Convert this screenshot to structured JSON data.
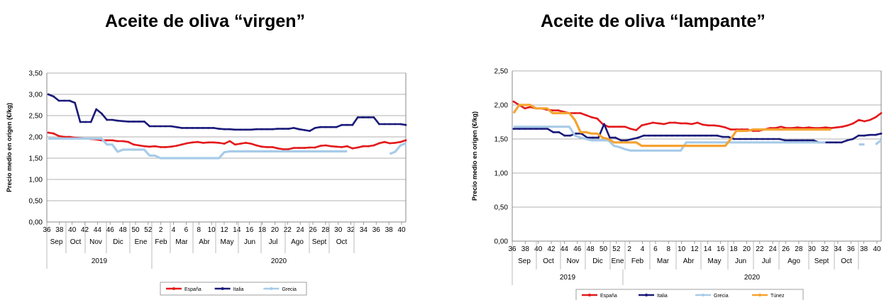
{
  "colors": {
    "espana": "#e31a1c",
    "italia": "#1a1a7a",
    "grecia": "#a8cbe8",
    "tunez": "#f5a330",
    "grid": "#999999"
  },
  "chart_data": [
    {
      "type": "line",
      "title": "Aceite de oliva “virgen”",
      "ylabel": "Precio medio en origen (€/kg)",
      "ylim": [
        0,
        3.5
      ],
      "y_ticks": [
        "0,00",
        "0,50",
        "1,00",
        "1,50",
        "2,00",
        "2,50",
        "3,00",
        "3,50"
      ],
      "x_ticks": [
        "36",
        "38",
        "40",
        "42",
        "44",
        "46",
        "48",
        "50",
        "52",
        "2",
        "4",
        "6",
        "8",
        "10",
        "12",
        "14",
        "16",
        "18",
        "20",
        "22",
        "24",
        "26",
        "28",
        "30",
        "32",
        "34",
        "36",
        "38",
        "40"
      ],
      "months": [
        "Sep",
        "Oct",
        "Nov",
        "Dic",
        "Ene",
        "Feb",
        "Mar",
        "Abr",
        "May",
        "Jun",
        "Jul",
        "Ago",
        "Sept",
        "Oct"
      ],
      "years": [
        "2019",
        "2020"
      ],
      "legend_position": "bottom",
      "series": [
        {
          "name": "España",
          "color_key": "espana",
          "values": [
            2.1,
            2.08,
            2.02,
            2.0,
            2.0,
            1.98,
            1.97,
            1.96,
            1.95,
            1.94,
            1.92,
            1.92,
            1.92,
            1.9,
            1.9,
            1.88,
            1.82,
            1.8,
            1.78,
            1.77,
            1.78,
            1.76,
            1.76,
            1.77,
            1.79,
            1.82,
            1.85,
            1.87,
            1.88,
            1.86,
            1.87,
            1.87,
            1.86,
            1.84,
            1.9,
            1.82,
            1.84,
            1.86,
            1.84,
            1.8,
            1.77,
            1.76,
            1.76,
            1.73,
            1.71,
            1.71,
            1.74,
            1.74,
            1.74,
            1.75,
            1.75,
            1.79,
            1.8,
            1.78,
            1.77,
            1.76,
            1.78,
            1.73,
            1.75,
            1.78,
            1.78,
            1.8,
            1.85,
            1.88,
            1.85,
            1.86,
            1.88,
            1.92
          ]
        },
        {
          "name": "Italia",
          "color_key": "italia",
          "values": [
            3.0,
            2.95,
            2.85,
            2.85,
            2.85,
            2.8,
            2.35,
            2.35,
            2.35,
            2.65,
            2.55,
            2.4,
            2.4,
            2.38,
            2.37,
            2.36,
            2.36,
            2.36,
            2.36,
            2.25,
            2.25,
            2.25,
            2.25,
            2.25,
            2.23,
            2.21,
            2.21,
            2.21,
            2.21,
            2.21,
            2.21,
            2.21,
            2.19,
            2.18,
            2.18,
            2.17,
            2.17,
            2.17,
            2.17,
            2.18,
            2.18,
            2.18,
            2.18,
            2.19,
            2.19,
            2.19,
            2.21,
            2.18,
            2.16,
            2.14,
            2.21,
            2.23,
            2.23,
            2.23,
            2.23,
            2.28,
            2.28,
            2.28,
            2.46,
            2.46,
            2.46,
            2.46,
            2.3,
            2.3,
            2.3,
            2.3,
            2.3,
            2.28
          ]
        },
        {
          "name": "Grecia",
          "color_key": "grecia",
          "values": [
            1.96,
            1.96,
            1.96,
            1.96,
            1.96,
            1.96,
            1.96,
            1.96,
            1.96,
            1.96,
            1.96,
            1.82,
            1.82,
            1.65,
            1.7,
            1.7,
            1.7,
            1.7,
            1.7,
            1.56,
            1.56,
            1.5,
            1.5,
            1.5,
            1.5,
            1.5,
            1.5,
            1.5,
            1.5,
            1.5,
            1.5,
            1.5,
            1.5,
            1.64,
            1.66,
            1.66,
            1.66,
            1.66,
            1.66,
            1.66,
            1.66,
            1.66,
            1.66,
            1.66,
            1.66,
            1.66,
            1.66,
            1.66,
            1.66,
            1.66,
            1.66,
            1.66,
            1.66,
            1.66,
            1.66,
            1.66,
            1.66,
            null,
            null,
            null,
            null,
            null,
            null,
            null,
            1.6,
            1.65,
            1.8,
            1.85
          ]
        }
      ]
    },
    {
      "type": "line",
      "title": "Aceite de oliva “lampante”",
      "ylabel": "Precio medio en origen (€/kg)",
      "ylim": [
        0,
        2.5
      ],
      "y_ticks": [
        "0,00",
        "0,50",
        "1,00",
        "1,50",
        "2,00",
        "2,50"
      ],
      "x_ticks": [
        "36",
        "38",
        "40",
        "42",
        "44",
        "46",
        "48",
        "50",
        "52",
        "2",
        "4",
        "6",
        "8",
        "10",
        "12",
        "14",
        "16",
        "18",
        "20",
        "22",
        "24",
        "26",
        "28",
        "30",
        "32",
        "34",
        "36",
        "38",
        "40"
      ],
      "months": [
        "Sep",
        "Oct",
        "Nov",
        "Dic",
        "Ene",
        "Feb",
        "Mar",
        "Abr",
        "May",
        "Jun",
        "Jul",
        "Ago",
        "Sept",
        "Oct"
      ],
      "years": [
        "2019",
        "2020"
      ],
      "legend_position": "bottom",
      "series": [
        {
          "name": "España",
          "color_key": "espana",
          "values": [
            2.05,
            2.0,
            1.95,
            1.97,
            1.95,
            1.95,
            1.93,
            1.92,
            1.92,
            1.9,
            1.88,
            1.88,
            1.88,
            1.85,
            1.82,
            1.8,
            1.72,
            1.68,
            1.68,
            1.68,
            1.68,
            1.65,
            1.63,
            1.7,
            1.72,
            1.74,
            1.73,
            1.72,
            1.74,
            1.74,
            1.73,
            1.73,
            1.72,
            1.74,
            1.71,
            1.7,
            1.7,
            1.69,
            1.67,
            1.64,
            1.64,
            1.64,
            1.64,
            1.62,
            1.62,
            1.64,
            1.66,
            1.66,
            1.68,
            1.66,
            1.66,
            1.67,
            1.66,
            1.67,
            1.66,
            1.66,
            1.67,
            1.66,
            1.67,
            1.68,
            1.7,
            1.73,
            1.78,
            1.76,
            1.78,
            1.82,
            1.88
          ]
        },
        {
          "name": "Italia",
          "color_key": "italia",
          "values": [
            1.65,
            1.65,
            1.65,
            1.65,
            1.65,
            1.65,
            1.65,
            1.6,
            1.6,
            1.55,
            1.55,
            1.58,
            1.58,
            1.52,
            1.52,
            1.52,
            1.72,
            1.52,
            1.52,
            1.48,
            1.48,
            1.5,
            1.52,
            1.55,
            1.55,
            1.55,
            1.55,
            1.55,
            1.55,
            1.55,
            1.55,
            1.55,
            1.55,
            1.55,
            1.55,
            1.55,
            1.55,
            1.53,
            1.53,
            1.5,
            1.5,
            1.5,
            1.5,
            1.5,
            1.5,
            1.5,
            1.5,
            1.5,
            1.48,
            1.48,
            1.48,
            1.48,
            1.48,
            1.48,
            1.45,
            1.45,
            1.45,
            1.45,
            1.45,
            1.48,
            1.5,
            1.55,
            1.55,
            1.56,
            1.56,
            1.58
          ]
        },
        {
          "name": "Grecia",
          "color_key": "grecia",
          "values": [
            1.68,
            1.68,
            1.68,
            1.68,
            1.68,
            1.68,
            1.68,
            1.68,
            1.68,
            1.68,
            1.68,
            1.55,
            1.52,
            1.5,
            1.48,
            1.48,
            1.48,
            1.48,
            1.4,
            1.38,
            1.35,
            1.33,
            1.33,
            1.33,
            1.33,
            1.33,
            1.33,
            1.33,
            1.33,
            1.33,
            1.33,
            1.45,
            1.45,
            1.45,
            1.45,
            1.45,
            1.45,
            1.45,
            1.45,
            1.45,
            1.45,
            1.45,
            1.45,
            1.45,
            1.45,
            1.45,
            1.45,
            1.45,
            1.45,
            1.45,
            1.45,
            1.45,
            1.45,
            1.45,
            1.45,
            1.45,
            1.45,
            null,
            null,
            null,
            null,
            null,
            1.42,
            1.42,
            null,
            1.42,
            1.48
          ]
        },
        {
          "name": "Túnez",
          "color_key": "tunez",
          "values": [
            1.88,
            2.0,
            2.0,
            2.0,
            1.95,
            1.95,
            1.95,
            1.88,
            1.88,
            1.88,
            1.88,
            1.78,
            1.6,
            1.6,
            1.58,
            1.58,
            1.52,
            1.5,
            1.45,
            1.45,
            1.45,
            1.45,
            1.45,
            1.4,
            1.4,
            1.4,
            1.4,
            1.4,
            1.4,
            1.4,
            1.4,
            1.4,
            1.4,
            1.4,
            1.4,
            1.4,
            1.4,
            1.4,
            1.4,
            1.5,
            1.62,
            1.62,
            1.62,
            1.64,
            1.64,
            1.64,
            1.64,
            1.64,
            1.64,
            1.64,
            1.64,
            1.64,
            1.64,
            1.64,
            1.64,
            1.64,
            1.64,
            1.64,
            null,
            null,
            null,
            null,
            null,
            null,
            null,
            null,
            null
          ]
        }
      ]
    }
  ]
}
